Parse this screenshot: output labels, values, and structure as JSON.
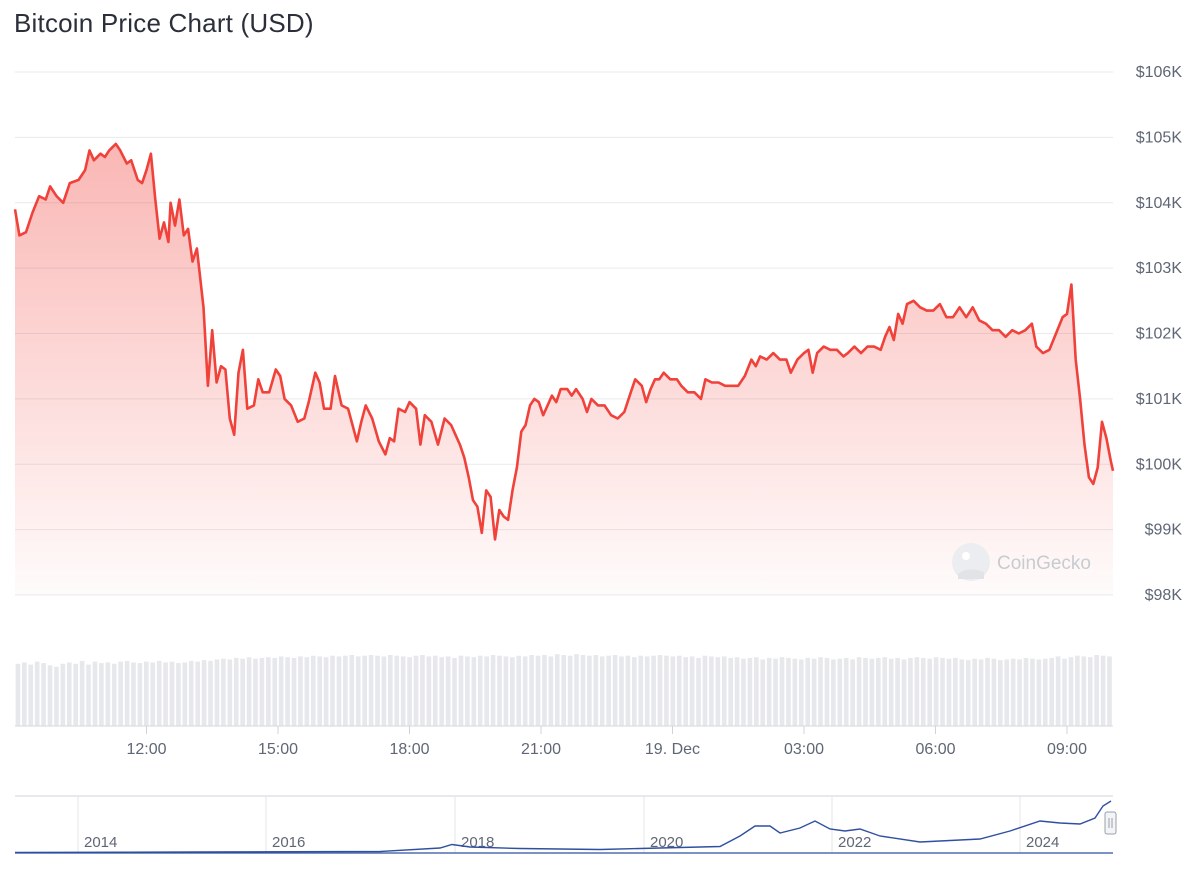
{
  "chart_data": {
    "type": "area",
    "title": "Bitcoin Price Chart (USD)",
    "y_axis": {
      "ticks": [
        98000,
        99000,
        100000,
        101000,
        102000,
        103000,
        104000,
        105000,
        106000
      ],
      "tick_labels": [
        "$98K",
        "$99K",
        "$100K",
        "$101K",
        "$102K",
        "$103K",
        "$104K",
        "$105K",
        "$106K"
      ],
      "range": [
        98000,
        106000
      ]
    },
    "x_axis": {
      "range_hours": [
        9.0,
        33.4
      ],
      "ticks": [
        {
          "h": 12,
          "label": "12:00"
        },
        {
          "h": 15,
          "label": "15:00"
        },
        {
          "h": 18,
          "label": "18:00"
        },
        {
          "h": 21,
          "label": "21:00"
        },
        {
          "h": 24,
          "label": "19. Dec"
        },
        {
          "h": 27,
          "label": "03:00"
        },
        {
          "h": 30,
          "label": "06:00"
        },
        {
          "h": 33,
          "label": "09:00"
        }
      ]
    },
    "line_color": "#f0413a",
    "series": [
      {
        "values": [
          [
            9.0,
            103900
          ],
          [
            9.1,
            103500
          ],
          [
            9.25,
            103550
          ],
          [
            9.4,
            103850
          ],
          [
            9.55,
            104100
          ],
          [
            9.7,
            104050
          ],
          [
            9.8,
            104250
          ],
          [
            9.95,
            104100
          ],
          [
            10.1,
            104000
          ],
          [
            10.25,
            104300
          ],
          [
            10.45,
            104350
          ],
          [
            10.6,
            104500
          ],
          [
            10.7,
            104800
          ],
          [
            10.8,
            104650
          ],
          [
            10.95,
            104750
          ],
          [
            11.05,
            104700
          ],
          [
            11.15,
            104800
          ],
          [
            11.3,
            104900
          ],
          [
            11.4,
            104800
          ],
          [
            11.55,
            104600
          ],
          [
            11.65,
            104650
          ],
          [
            11.8,
            104350
          ],
          [
            11.9,
            104300
          ],
          [
            12.0,
            104500
          ],
          [
            12.1,
            104750
          ],
          [
            12.2,
            104050
          ],
          [
            12.3,
            103450
          ],
          [
            12.4,
            103700
          ],
          [
            12.5,
            103400
          ],
          [
            12.55,
            104000
          ],
          [
            12.65,
            103650
          ],
          [
            12.75,
            104050
          ],
          [
            12.85,
            103500
          ],
          [
            12.95,
            103600
          ],
          [
            13.05,
            103100
          ],
          [
            13.15,
            103300
          ],
          [
            13.3,
            102400
          ],
          [
            13.4,
            101200
          ],
          [
            13.5,
            102050
          ],
          [
            13.6,
            101250
          ],
          [
            13.7,
            101500
          ],
          [
            13.8,
            101450
          ],
          [
            13.9,
            100700
          ],
          [
            14.0,
            100450
          ],
          [
            14.1,
            101400
          ],
          [
            14.2,
            101750
          ],
          [
            14.3,
            100850
          ],
          [
            14.45,
            100900
          ],
          [
            14.55,
            101300
          ],
          [
            14.65,
            101100
          ],
          [
            14.8,
            101100
          ],
          [
            14.95,
            101450
          ],
          [
            15.05,
            101350
          ],
          [
            15.15,
            101000
          ],
          [
            15.3,
            100900
          ],
          [
            15.45,
            100650
          ],
          [
            15.6,
            100700
          ],
          [
            15.7,
            100950
          ],
          [
            15.85,
            101400
          ],
          [
            15.95,
            101250
          ],
          [
            16.05,
            100850
          ],
          [
            16.2,
            100850
          ],
          [
            16.3,
            101350
          ],
          [
            16.45,
            100900
          ],
          [
            16.6,
            100850
          ],
          [
            16.7,
            100600
          ],
          [
            16.8,
            100350
          ],
          [
            16.9,
            100650
          ],
          [
            17.0,
            100900
          ],
          [
            17.15,
            100700
          ],
          [
            17.3,
            100350
          ],
          [
            17.45,
            100150
          ],
          [
            17.55,
            100400
          ],
          [
            17.65,
            100350
          ],
          [
            17.75,
            100850
          ],
          [
            17.9,
            100800
          ],
          [
            18.0,
            100950
          ],
          [
            18.15,
            100850
          ],
          [
            18.25,
            100300
          ],
          [
            18.35,
            100750
          ],
          [
            18.5,
            100650
          ],
          [
            18.65,
            100300
          ],
          [
            18.8,
            100700
          ],
          [
            18.95,
            100600
          ],
          [
            19.05,
            100450
          ],
          [
            19.15,
            100300
          ],
          [
            19.25,
            100100
          ],
          [
            19.35,
            99800
          ],
          [
            19.45,
            99450
          ],
          [
            19.55,
            99350
          ],
          [
            19.65,
            98950
          ],
          [
            19.75,
            99600
          ],
          [
            19.85,
            99500
          ],
          [
            19.95,
            98850
          ],
          [
            20.05,
            99300
          ],
          [
            20.15,
            99200
          ],
          [
            20.25,
            99150
          ],
          [
            20.35,
            99600
          ],
          [
            20.45,
            99950
          ],
          [
            20.55,
            100500
          ],
          [
            20.65,
            100600
          ],
          [
            20.75,
            100900
          ],
          [
            20.85,
            101000
          ],
          [
            20.95,
            100950
          ],
          [
            21.05,
            100750
          ],
          [
            21.15,
            100900
          ],
          [
            21.25,
            101050
          ],
          [
            21.35,
            100950
          ],
          [
            21.45,
            101150
          ],
          [
            21.6,
            101150
          ],
          [
            21.7,
            101050
          ],
          [
            21.8,
            101150
          ],
          [
            21.95,
            101000
          ],
          [
            22.05,
            100800
          ],
          [
            22.15,
            101000
          ],
          [
            22.3,
            100900
          ],
          [
            22.45,
            100900
          ],
          [
            22.6,
            100750
          ],
          [
            22.75,
            100700
          ],
          [
            22.9,
            100800
          ],
          [
            23.05,
            101100
          ],
          [
            23.15,
            101300
          ],
          [
            23.3,
            101200
          ],
          [
            23.4,
            100950
          ],
          [
            23.5,
            101150
          ],
          [
            23.6,
            101300
          ],
          [
            23.7,
            101300
          ],
          [
            23.8,
            101400
          ],
          [
            23.95,
            101300
          ],
          [
            24.1,
            101300
          ],
          [
            24.2,
            101200
          ],
          [
            24.35,
            101100
          ],
          [
            24.5,
            101100
          ],
          [
            24.65,
            101000
          ],
          [
            24.75,
            101300
          ],
          [
            24.9,
            101250
          ],
          [
            25.05,
            101250
          ],
          [
            25.2,
            101200
          ],
          [
            25.35,
            101200
          ],
          [
            25.5,
            101200
          ],
          [
            25.65,
            101350
          ],
          [
            25.8,
            101600
          ],
          [
            25.9,
            101500
          ],
          [
            26.0,
            101650
          ],
          [
            26.15,
            101600
          ],
          [
            26.3,
            101700
          ],
          [
            26.45,
            101600
          ],
          [
            26.6,
            101600
          ],
          [
            26.7,
            101400
          ],
          [
            26.85,
            101600
          ],
          [
            27.0,
            101700
          ],
          [
            27.1,
            101750
          ],
          [
            27.2,
            101400
          ],
          [
            27.3,
            101700
          ],
          [
            27.45,
            101800
          ],
          [
            27.6,
            101750
          ],
          [
            27.75,
            101750
          ],
          [
            27.9,
            101650
          ],
          [
            28.0,
            101700
          ],
          [
            28.15,
            101800
          ],
          [
            28.3,
            101700
          ],
          [
            28.45,
            101800
          ],
          [
            28.6,
            101800
          ],
          [
            28.75,
            101750
          ],
          [
            28.85,
            101950
          ],
          [
            28.95,
            102100
          ],
          [
            29.05,
            101900
          ],
          [
            29.15,
            102300
          ],
          [
            29.25,
            102150
          ],
          [
            29.35,
            102450
          ],
          [
            29.5,
            102500
          ],
          [
            29.65,
            102400
          ],
          [
            29.8,
            102350
          ],
          [
            29.95,
            102350
          ],
          [
            30.1,
            102450
          ],
          [
            30.25,
            102250
          ],
          [
            30.4,
            102250
          ],
          [
            30.55,
            102400
          ],
          [
            30.7,
            102250
          ],
          [
            30.85,
            102400
          ],
          [
            31.0,
            102200
          ],
          [
            31.15,
            102150
          ],
          [
            31.3,
            102050
          ],
          [
            31.45,
            102050
          ],
          [
            31.6,
            101950
          ],
          [
            31.75,
            102050
          ],
          [
            31.9,
            102000
          ],
          [
            32.05,
            102050
          ],
          [
            32.2,
            102150
          ],
          [
            32.3,
            101800
          ],
          [
            32.45,
            101700
          ],
          [
            32.6,
            101750
          ],
          [
            32.75,
            102000
          ],
          [
            32.9,
            102250
          ],
          [
            33.0,
            102300
          ],
          [
            33.1,
            102750
          ],
          [
            33.2,
            101600
          ],
          [
            33.3,
            101000
          ],
          [
            33.4,
            100300
          ],
          [
            33.5,
            99800
          ],
          [
            33.6,
            99700
          ],
          [
            33.7,
            99950
          ],
          [
            33.8,
            100650
          ],
          [
            33.9,
            100400
          ],
          [
            34.0,
            100050
          ],
          [
            34.05,
            99900
          ]
        ]
      }
    ],
    "volume_bars": [
      0.84,
      0.86,
      0.83,
      0.87,
      0.85,
      0.82,
      0.8,
      0.84,
      0.86,
      0.84,
      0.88,
      0.83,
      0.87,
      0.85,
      0.86,
      0.84,
      0.87,
      0.88,
      0.86,
      0.85,
      0.87,
      0.86,
      0.88,
      0.86,
      0.87,
      0.85,
      0.86,
      0.88,
      0.87,
      0.89,
      0.88,
      0.9,
      0.91,
      0.9,
      0.92,
      0.91,
      0.93,
      0.91,
      0.92,
      0.93,
      0.92,
      0.94,
      0.93,
      0.92,
      0.94,
      0.93,
      0.95,
      0.94,
      0.93,
      0.95,
      0.94,
      0.95,
      0.96,
      0.94,
      0.95,
      0.96,
      0.95,
      0.94,
      0.96,
      0.95,
      0.94,
      0.93,
      0.95,
      0.96,
      0.94,
      0.95,
      0.93,
      0.94,
      0.92,
      0.95,
      0.94,
      0.93,
      0.95,
      0.94,
      0.96,
      0.95,
      0.94,
      0.93,
      0.95,
      0.94,
      0.96,
      0.95,
      0.96,
      0.94,
      0.97,
      0.96,
      0.95,
      0.97,
      0.96,
      0.95,
      0.96,
      0.94,
      0.95,
      0.96,
      0.94,
      0.95,
      0.93,
      0.95,
      0.94,
      0.95,
      0.96,
      0.95,
      0.94,
      0.95,
      0.93,
      0.94,
      0.92,
      0.95,
      0.94,
      0.93,
      0.94,
      0.92,
      0.93,
      0.91,
      0.92,
      0.93,
      0.9,
      0.92,
      0.91,
      0.93,
      0.92,
      0.91,
      0.9,
      0.92,
      0.91,
      0.93,
      0.92,
      0.9,
      0.91,
      0.92,
      0.9,
      0.93,
      0.92,
      0.91,
      0.92,
      0.93,
      0.91,
      0.92,
      0.9,
      0.92,
      0.93,
      0.92,
      0.91,
      0.93,
      0.92,
      0.91,
      0.92,
      0.9,
      0.89,
      0.91,
      0.9,
      0.92,
      0.91,
      0.89,
      0.9,
      0.91,
      0.9,
      0.92,
      0.91,
      0.9,
      0.91,
      0.92,
      0.94,
      0.91,
      0.93,
      0.95,
      0.94,
      0.93,
      0.96,
      0.95,
      0.94
    ],
    "navigator": {
      "tick_labels": [
        "2014",
        "2016",
        "2018",
        "2020",
        "2022",
        "2024"
      ],
      "line_color": "#2f4fa0"
    },
    "watermark": "CoinGecko"
  }
}
